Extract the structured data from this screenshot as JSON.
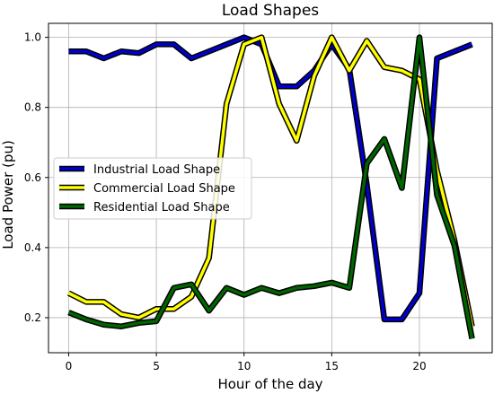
{
  "chart_data": {
    "type": "line",
    "title": "Load Shapes",
    "xlabel": "Hour of the day",
    "ylabel": "Load Power (pu)",
    "xlim": [
      -1.15,
      24.15
    ],
    "ylim": [
      0.1,
      1.04
    ],
    "xticks": [
      0,
      5,
      10,
      15,
      20
    ],
    "xtick_labels": [
      "0",
      "5",
      "10",
      "15",
      "20"
    ],
    "yticks": [
      0.2,
      0.4,
      0.6,
      0.8,
      1.0
    ],
    "ytick_labels": [
      "0.2",
      "0.4",
      "0.6",
      "0.8",
      "1.0"
    ],
    "grid": true,
    "legend_position": "center-left",
    "x": [
      0,
      1,
      2,
      3,
      4,
      5,
      6,
      7,
      8,
      9,
      10,
      11,
      12,
      13,
      14,
      15,
      16,
      17,
      18,
      19,
      20,
      21,
      22,
      23
    ],
    "series": [
      {
        "name": "Industrial Load Shape",
        "color": "#0000cc",
        "values": [
          0.96,
          0.96,
          0.94,
          0.96,
          0.955,
          0.98,
          0.98,
          0.94,
          0.96,
          0.98,
          1.0,
          0.98,
          0.86,
          0.86,
          0.905,
          0.98,
          0.91,
          0.58,
          0.195,
          0.195,
          0.27,
          0.94,
          0.96,
          0.98
        ]
      },
      {
        "name": "Commercial Load Shape",
        "color": "#ffff00",
        "values": [
          0.27,
          0.245,
          0.245,
          0.21,
          0.2,
          0.225,
          0.225,
          0.26,
          0.37,
          0.81,
          0.98,
          1.0,
          0.81,
          0.705,
          0.89,
          1.0,
          0.905,
          0.99,
          0.915,
          0.905,
          0.88,
          0.62,
          0.42,
          0.175
        ]
      },
      {
        "name": "Residential Load Shape",
        "color": "#006400",
        "values": [
          0.215,
          0.195,
          0.18,
          0.175,
          0.185,
          0.19,
          0.285,
          0.295,
          0.22,
          0.285,
          0.265,
          0.285,
          0.27,
          0.285,
          0.29,
          0.3,
          0.285,
          0.64,
          0.71,
          0.57,
          1.0,
          0.55,
          0.405,
          0.14
        ]
      }
    ]
  }
}
